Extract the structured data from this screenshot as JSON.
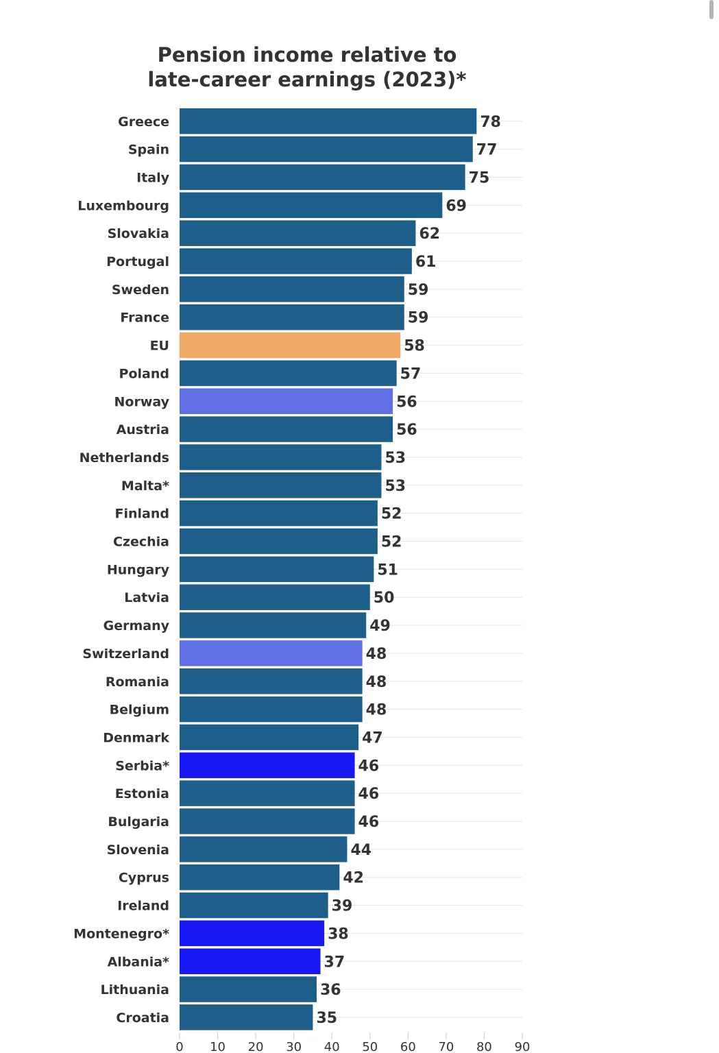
{
  "chart_data": {
    "type": "bar",
    "orientation": "horizontal",
    "title_lines": [
      "Pension income relative to",
      "late-career earnings (2023)*"
    ],
    "xlim": [
      0,
      90
    ],
    "x_ticks": [
      "0",
      "10",
      "20",
      "30",
      "40",
      "50",
      "60",
      "70",
      "80",
      "90"
    ],
    "grid": "horizontal light lines at each bar row",
    "data_labels": true,
    "categories": [
      "Greece",
      "Spain",
      "Italy",
      "Luxembourg",
      "Slovakia",
      "Portugal",
      "Sweden",
      "France",
      "EU",
      "Poland",
      "Norway",
      "Austria",
      "Netherlands",
      "Malta*",
      "Finland",
      "Czechia",
      "Hungary",
      "Latvia",
      "Germany",
      "Switzerland",
      "Romania",
      "Belgium",
      "Denmark",
      "Serbia*",
      "Estonia",
      "Bulgaria",
      "Slovenia",
      "Cyprus",
      "Ireland",
      "Montenegro*",
      "Albania*",
      "Lithuania",
      "Croatia"
    ],
    "values": [
      78,
      77,
      75,
      69,
      62,
      61,
      59,
      59,
      58,
      57,
      56,
      56,
      53,
      53,
      52,
      52,
      51,
      50,
      49,
      48,
      48,
      48,
      47,
      46,
      46,
      46,
      44,
      42,
      39,
      38,
      37,
      36,
      35
    ],
    "bar_colors": [
      "#1d5f8a",
      "#1d5f8a",
      "#1d5f8a",
      "#1d5f8a",
      "#1d5f8a",
      "#1d5f8a",
      "#1d5f8a",
      "#1d5f8a",
      "#eeaa66",
      "#1d5f8a",
      "#6070e4",
      "#1d5f8a",
      "#1d5f8a",
      "#1d5f8a",
      "#1d5f8a",
      "#1d5f8a",
      "#1d5f8a",
      "#1d5f8a",
      "#1d5f8a",
      "#6070e4",
      "#1d5f8a",
      "#1d5f8a",
      "#1d5f8a",
      "#1818f5",
      "#1d5f8a",
      "#1d5f8a",
      "#1d5f8a",
      "#1d5f8a",
      "#1d5f8a",
      "#1818f5",
      "#1818f5",
      "#1d5f8a",
      "#1d5f8a"
    ]
  },
  "colors": {
    "default_bar": "#1d5f8a",
    "eu_bar": "#eeaa66",
    "efta_bar": "#6070e4",
    "candidate_bar": "#1818f5",
    "text": "#333333",
    "grid": "#e6e6e6"
  }
}
